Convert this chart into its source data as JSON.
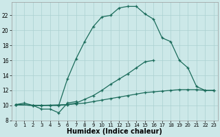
{
  "bg_color": "#cce8e8",
  "grid_color": "#aad0d0",
  "line_color": "#1a6b5a",
  "xlabel": "Humidex (Indice chaleur)",
  "xlabel_fontsize": 7,
  "xlim": [
    -0.5,
    23.5
  ],
  "ylim": [
    8,
    23.8
  ],
  "yticks": [
    8,
    10,
    12,
    14,
    16,
    18,
    20,
    22
  ],
  "xticks": [
    0,
    1,
    2,
    3,
    4,
    5,
    6,
    7,
    8,
    9,
    10,
    11,
    12,
    13,
    14,
    15,
    16,
    17,
    18,
    19,
    20,
    21,
    22,
    23
  ],
  "line1_x": [
    0,
    1,
    2,
    3,
    4,
    5,
    6,
    7
  ],
  "line1_y": [
    10.1,
    10.3,
    10.0,
    9.5,
    9.5,
    9.0,
    10.3,
    10.5
  ],
  "line2_x": [
    0,
    2,
    3,
    6,
    7,
    8,
    9,
    10,
    11,
    12,
    13,
    14,
    15,
    16,
    17,
    18,
    19,
    20,
    21,
    22,
    23
  ],
  "line2_y": [
    10.1,
    10.0,
    10.0,
    10.1,
    10.2,
    10.3,
    10.5,
    10.7,
    10.9,
    11.1,
    11.3,
    11.5,
    11.7,
    11.8,
    11.9,
    12.0,
    12.1,
    12.1,
    12.1,
    12.0,
    12.0
  ],
  "line3_x": [
    0,
    2,
    3,
    4,
    5,
    6,
    7,
    8,
    9,
    10,
    11,
    12,
    13,
    14,
    15,
    16,
    17,
    18,
    19,
    20
  ],
  "line3_y": [
    10.1,
    10.0,
    10.0,
    10.0,
    10.0,
    10.1,
    10.3,
    10.8,
    11.3,
    12.0,
    12.8,
    13.5,
    14.2,
    15.0,
    15.8,
    16.0,
    null,
    null,
    null,
    null
  ],
  "line4_x": [
    0,
    2,
    3,
    4,
    5,
    6,
    7,
    8,
    9,
    10,
    11,
    12,
    13,
    14,
    15,
    16,
    17,
    18,
    19,
    20,
    21,
    22,
    23
  ],
  "line4_y": [
    10.1,
    10.0,
    10.0,
    10.0,
    10.0,
    13.5,
    16.2,
    18.5,
    20.5,
    21.8,
    22.0,
    23.0,
    23.2,
    23.2,
    22.2,
    21.5,
    19.0,
    18.5,
    16.0,
    15.0,
    12.5,
    12.0,
    12.0
  ]
}
